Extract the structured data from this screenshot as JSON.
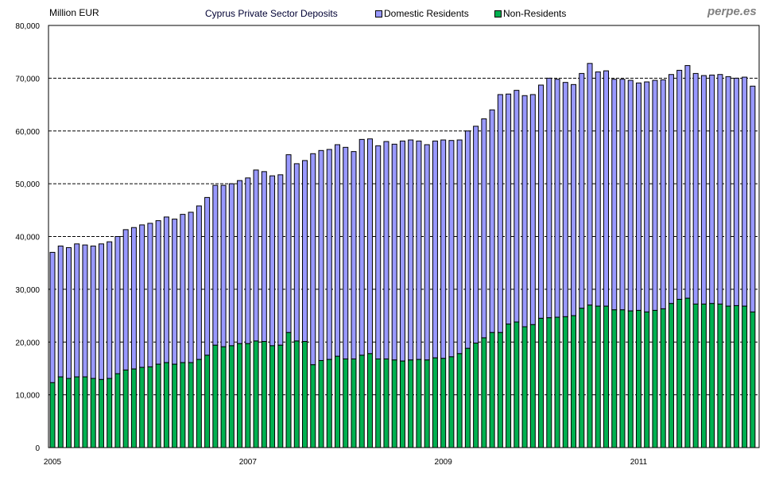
{
  "chart_data": {
    "type": "bar",
    "stacked": true,
    "title": "Cyprus Private Sector Deposits",
    "ylabel": "Million EUR",
    "watermark": "perpe.es",
    "ylim": [
      0,
      80000
    ],
    "yticks": [
      0,
      10000,
      20000,
      30000,
      40000,
      50000,
      60000,
      70000,
      80000
    ],
    "ytick_labels": [
      "0",
      "10,000",
      "20,000",
      "30,000",
      "40,000",
      "50,000",
      "60,000",
      "70,000",
      "80,000"
    ],
    "xtick_labels": [
      {
        "index": 0,
        "label": "2005"
      },
      {
        "index": 24,
        "label": "2007"
      },
      {
        "index": 48,
        "label": "2009"
      },
      {
        "index": 72,
        "label": "2011"
      }
    ],
    "legend_position": "top",
    "grid": true,
    "colors": {
      "domestic": "#9999FF",
      "nonres": "#00B050"
    },
    "series": [
      {
        "name": "Domestic Residents",
        "note": "stacked on top; values below are totals",
        "totals": [
          37000,
          38200,
          37900,
          38600,
          38400,
          38200,
          38600,
          39000,
          40000,
          41300,
          41700,
          42200,
          42500,
          43000,
          43700,
          43300,
          44200,
          44600,
          45800,
          47400,
          49700,
          49700,
          50000,
          50600,
          51100,
          52600,
          52300,
          51500,
          51700,
          55500,
          53800,
          54400,
          55700,
          56300,
          56500,
          57400,
          56900,
          56100,
          58400,
          58500,
          57200,
          58000,
          57500,
          58100,
          58300,
          58100,
          57400,
          58100,
          58300,
          58200,
          58300,
          60000,
          60900,
          62300,
          64000,
          66900,
          67000,
          67700,
          66700,
          66900,
          68700,
          70000,
          69800,
          69200,
          68800,
          70900,
          72800,
          71200,
          71400,
          69800,
          69800,
          69600,
          69100,
          69300,
          69600,
          69700,
          70700,
          71500,
          72400,
          70900,
          70500,
          70600,
          70700,
          70300,
          70000,
          70200,
          68500
        ]
      },
      {
        "name": "Non-Residents",
        "values": [
          12300,
          13400,
          13100,
          13400,
          13400,
          13100,
          12900,
          13100,
          14000,
          14700,
          14900,
          15200,
          15300,
          15800,
          16100,
          15800,
          16100,
          16100,
          16700,
          17500,
          19400,
          19100,
          19300,
          19700,
          19700,
          20200,
          20100,
          19300,
          19400,
          21800,
          20200,
          20100,
          15700,
          16500,
          16700,
          17300,
          16800,
          16800,
          17500,
          17800,
          16800,
          16800,
          16600,
          16400,
          16600,
          16700,
          16600,
          17000,
          16900,
          17200,
          17800,
          18800,
          19800,
          20800,
          21800,
          21800,
          23400,
          23800,
          22900,
          23300,
          24500,
          24600,
          24700,
          24800,
          25000,
          26400,
          27000,
          26800,
          26800,
          26100,
          26100,
          25900,
          26000,
          25700,
          26000,
          26300,
          27300,
          28100,
          28300,
          27200,
          27200,
          27300,
          27200,
          26800,
          26900,
          26800,
          25700
        ]
      }
    ]
  }
}
